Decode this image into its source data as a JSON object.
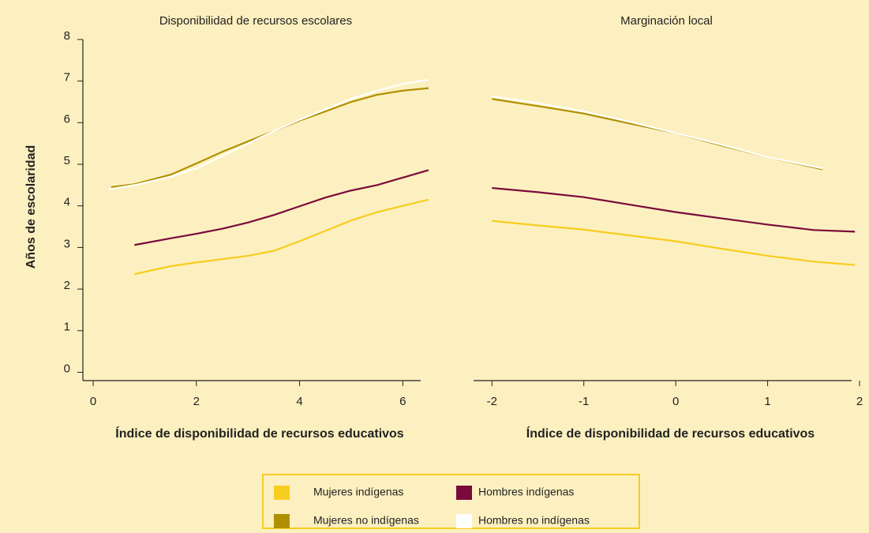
{
  "chart_data": [
    {
      "type": "line",
      "title": "Disponibilidad de recursos escolares",
      "x_label": "Índice de disponibilidad de recursos educativos",
      "y_label": "Años de escolaridad",
      "xlim": [
        -0.2,
        6.5
      ],
      "xticks": [
        0,
        2,
        4,
        6
      ],
      "ylim": [
        -0.2,
        8
      ],
      "yticks": [
        0,
        1,
        2,
        3,
        4,
        5,
        6,
        7,
        8
      ],
      "series": [
        {
          "name": "Mujeres indígenas",
          "color": "#f7cd1e",
          "x": [
            0.8,
            1.5,
            2,
            2.5,
            3,
            3.5,
            4,
            4.5,
            5,
            5.5,
            6,
            6.5
          ],
          "values": [
            2.36,
            2.55,
            2.64,
            2.72,
            2.8,
            2.92,
            3.15,
            3.4,
            3.65,
            3.85,
            4.0,
            4.15
          ]
        },
        {
          "name": "Hombres indígenas",
          "color": "#7a0a3b",
          "x": [
            0.8,
            1.5,
            2,
            2.5,
            3,
            3.5,
            4,
            4.5,
            5,
            5.5,
            6,
            6.5
          ],
          "values": [
            3.06,
            3.22,
            3.33,
            3.45,
            3.6,
            3.78,
            3.99,
            4.2,
            4.37,
            4.5,
            4.68,
            4.86
          ]
        },
        {
          "name": "Mujeres no indígenas",
          "color": "#b09000",
          "x": [
            0.35,
            0.8,
            1.5,
            2,
            2.5,
            3,
            3.5,
            4,
            4.5,
            5,
            5.5,
            6,
            6.5
          ],
          "values": [
            4.45,
            4.52,
            4.75,
            5.02,
            5.3,
            5.55,
            5.8,
            6.05,
            6.27,
            6.5,
            6.67,
            6.77,
            6.83
          ]
        },
        {
          "name": "Hombres no indígenas",
          "color": "#ffffff",
          "x": [
            0.3,
            0.8,
            1.5,
            2,
            2.5,
            3,
            3.5,
            4,
            4.5,
            5,
            5.5,
            6,
            6.5
          ],
          "values": [
            4.4,
            4.5,
            4.7,
            4.9,
            5.2,
            5.5,
            5.8,
            6.07,
            6.32,
            6.57,
            6.77,
            6.93,
            7.03
          ]
        }
      ]
    },
    {
      "type": "line",
      "title": "Marginación local",
      "x_label": "Índice de disponibilidad de recursos educativos",
      "xlim": [
        -2.2,
        2
      ],
      "xticks": [
        -2,
        -1,
        0,
        1,
        2
      ],
      "ylim": [
        -0.2,
        8
      ],
      "series": [
        {
          "color": "#f7cd1e",
          "x": [
            -2,
            -1.5,
            -1,
            -0.5,
            0,
            0.5,
            1,
            1.5,
            1.95
          ],
          "values": [
            3.64,
            3.53,
            3.43,
            3.29,
            3.15,
            2.97,
            2.8,
            2.66,
            2.58
          ]
        },
        {
          "color": "#7a0a3b",
          "x": [
            -2,
            -1.5,
            -1,
            -0.5,
            0,
            0.5,
            1,
            1.5,
            1.95
          ],
          "values": [
            4.43,
            4.33,
            4.21,
            4.03,
            3.85,
            3.7,
            3.55,
            3.42,
            3.38
          ]
        },
        {
          "color": "#b09000",
          "x": [
            -2,
            -1.5,
            -1,
            -0.5,
            0,
            0.5,
            1,
            1.6
          ],
          "values": [
            6.57,
            6.4,
            6.22,
            5.98,
            5.75,
            5.45,
            5.17,
            4.88
          ]
        },
        {
          "color": "#ffffff",
          "x": [
            -2,
            -1.5,
            -1,
            -0.5,
            0,
            0.5,
            1,
            1.6
          ],
          "values": [
            6.63,
            6.47,
            6.27,
            6.02,
            5.75,
            5.47,
            5.17,
            4.9
          ]
        }
      ]
    }
  ]
}
